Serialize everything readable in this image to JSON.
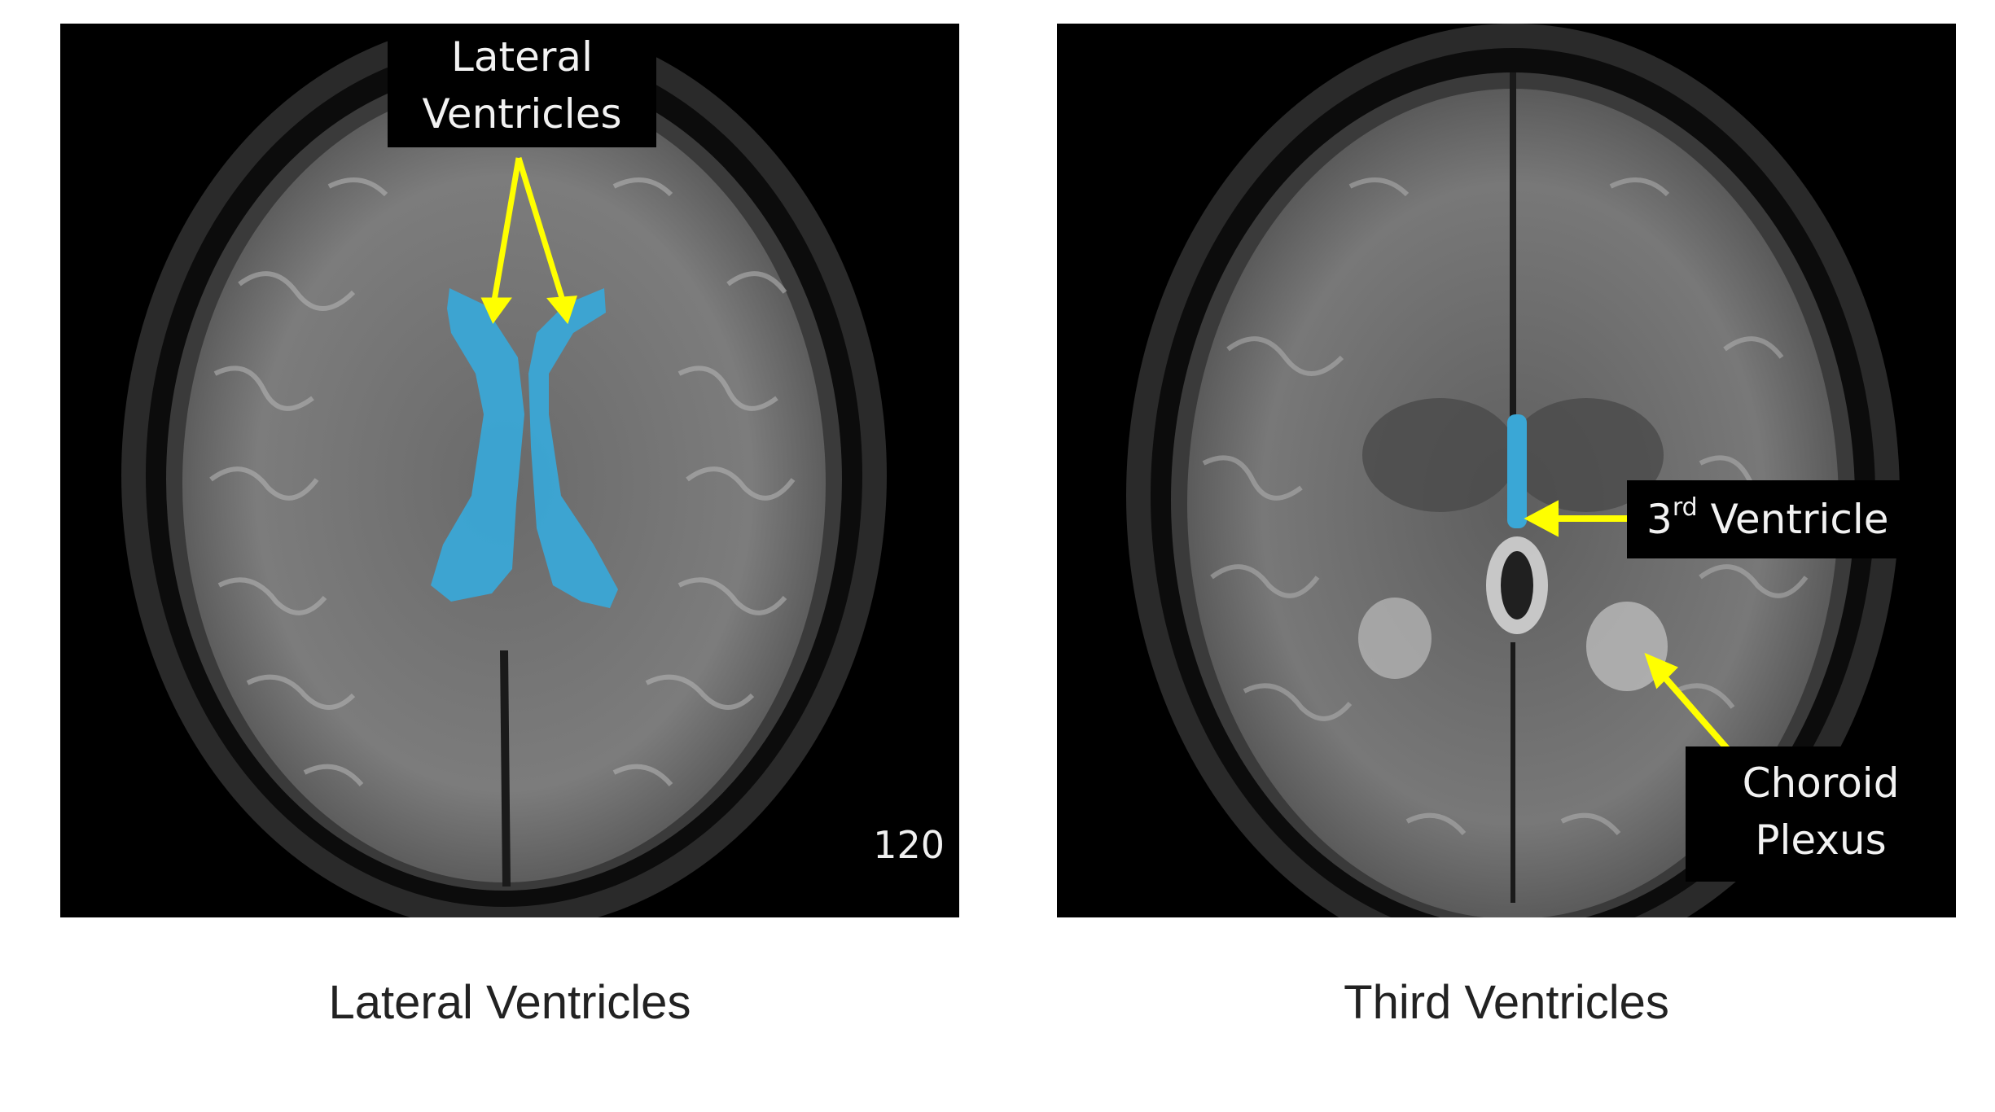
{
  "panels": [
    {
      "annotation": {
        "line1": "Lateral",
        "line2": "Ventricles"
      },
      "slice_number": "120",
      "caption": "Lateral Ventricles"
    },
    {
      "annotation_third": {
        "base": "3",
        "superscript": "rd",
        "rest": " Ventricle"
      },
      "annotation_choroid": {
        "line1": "Choroid",
        "line2": "Plexus"
      },
      "caption": "Third Ventricles"
    }
  ],
  "colors": {
    "ventricle_highlight": "#3aa7d6",
    "arrow": "#ffff00",
    "label_background": "#000000",
    "caption_text": "#222222"
  }
}
